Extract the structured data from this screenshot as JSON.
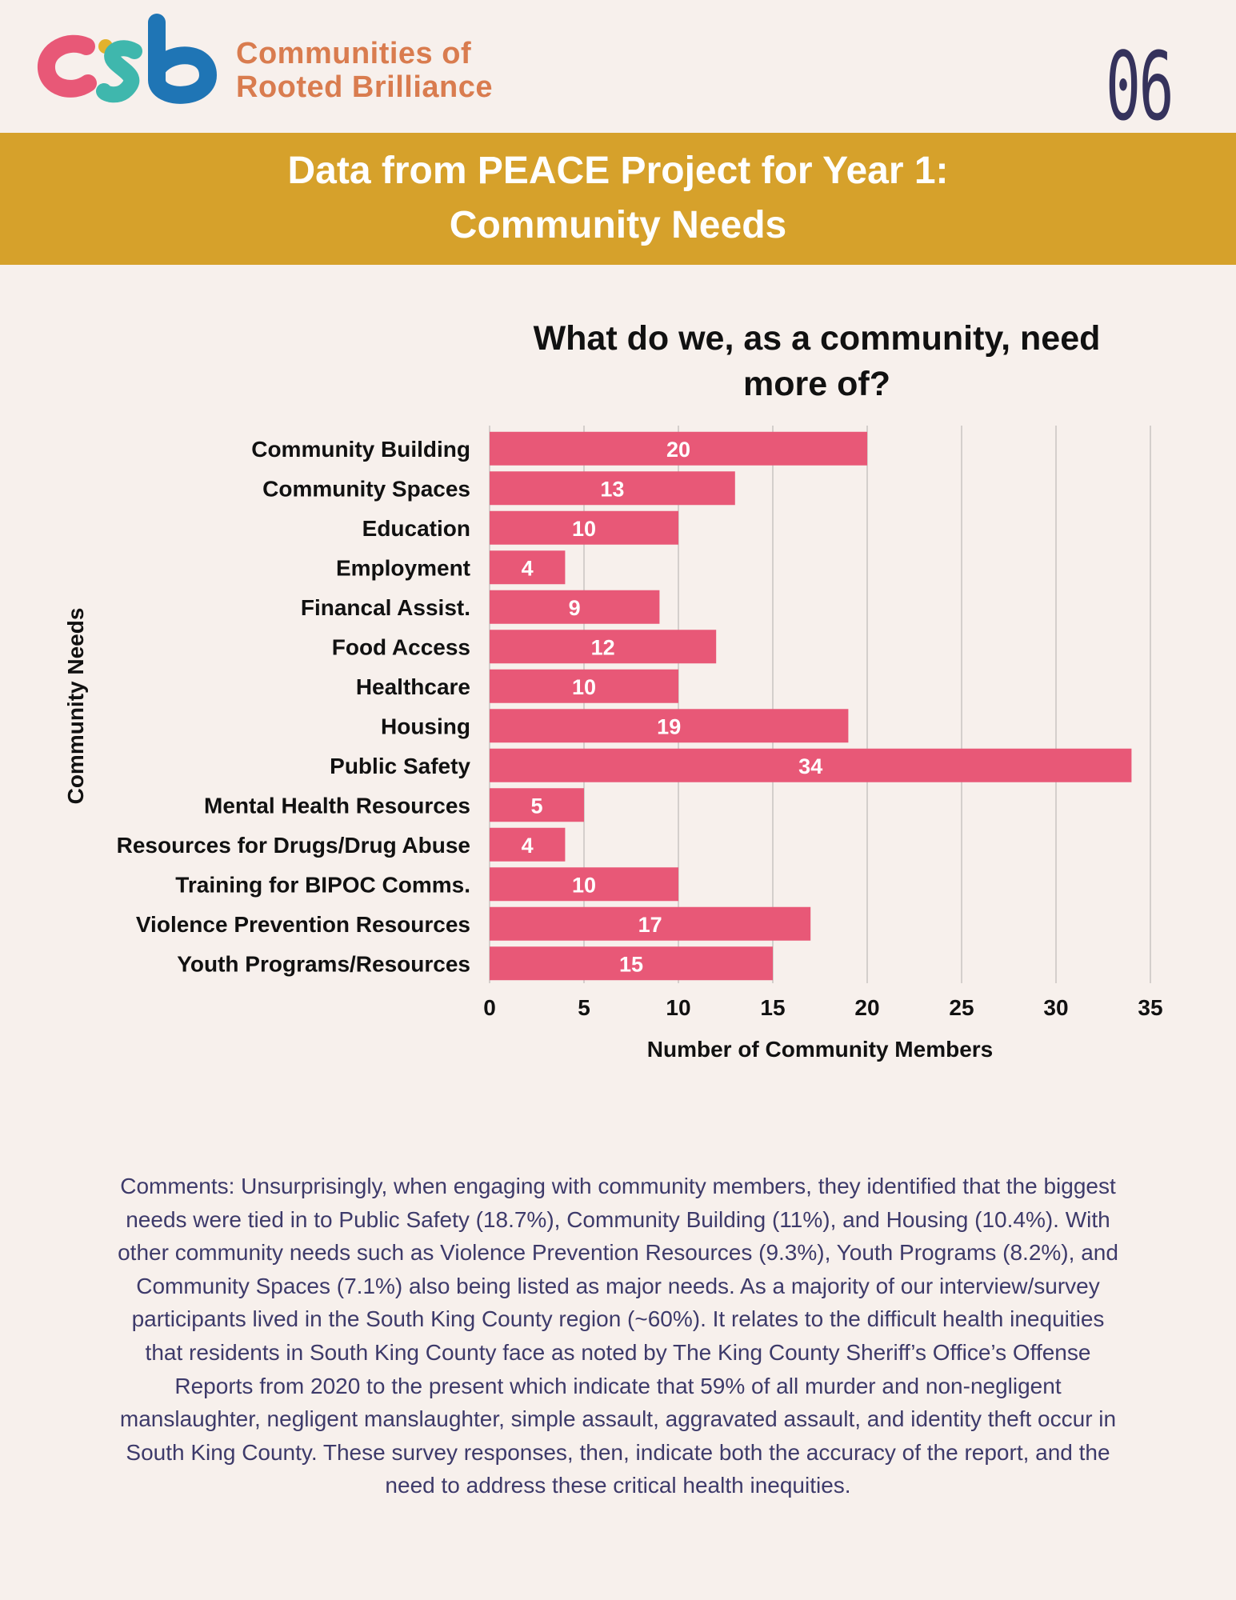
{
  "organization": {
    "logo_text": "crb",
    "name_line1": "Communities of",
    "name_line2": "Rooted Brilliance"
  },
  "page_number": "06",
  "banner": {
    "line1": "Data from PEACE Project for Year 1:",
    "line2": "Community Needs"
  },
  "chart_data": {
    "type": "bar",
    "orientation": "horizontal",
    "title_line1": "What do we, as a community, need",
    "title_line2": "more of?",
    "xlabel": "Number of Community Members",
    "ylabel": "Community Needs",
    "xlim": [
      0,
      35
    ],
    "xticks": [
      "0",
      "5",
      "10",
      "15",
      "20",
      "25",
      "30",
      "35"
    ],
    "categories": [
      "Community Building",
      "Community Spaces",
      "Education",
      "Employment",
      "Financal Assist.",
      "Food Access",
      "Healthcare",
      "Housing",
      "Public Safety",
      "Mental Health Resources",
      "Resources for Drugs/Drug Abuse",
      "Training for BIPOC Comms.",
      "Violence Prevention Resources",
      "Youth Programs/Resources"
    ],
    "values": [
      20,
      13,
      10,
      4,
      9,
      12,
      10,
      19,
      34,
      5,
      4,
      10,
      17,
      15
    ],
    "grid": "vertical",
    "bar_color": "#e85877",
    "label_color": "#ffffff"
  },
  "comments": "Comments: Unsurprisingly, when engaging with community members, they identified that the biggest needs were tied in to Public Safety (18.7%), Community Building (11%), and Housing (10.4%). With other community needs such as Violence Prevention Resources (9.3%), Youth Programs (8.2%), and Community Spaces (7.1%) also being listed as major needs. As a majority of our interview/survey participants lived in the South King County region (~60%). It relates to the difficult health inequities that residents in South King County face as noted by The King County Sheriff’s Office’s Offense Reports from 2020 to the present which indicate that 59% of all murder and non-negligent manslaughter, negligent manslaughter, simple assault, aggravated assault, and identity theft occur in South King County. These survey responses, then, indicate both the accuracy of the report, and the need to address these critical health inequities.",
  "colors": {
    "background": "#f7f0ec",
    "banner": "#d6a12b",
    "org_name": "#d97c4f",
    "page_number": "#35325c",
    "comments_text": "#3d3a6a",
    "logo_pink": "#e85877",
    "logo_yellow": "#e3b22c",
    "logo_teal": "#3fb7ad",
    "logo_blue": "#1f75b5"
  }
}
